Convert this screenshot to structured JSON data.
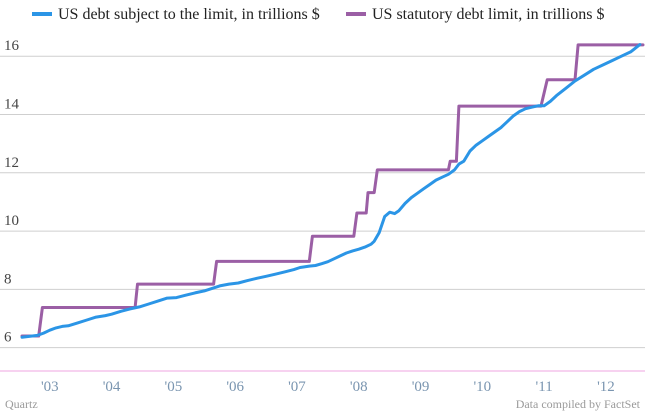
{
  "chart_data": {
    "type": "line",
    "title": "",
    "xlabel": "",
    "ylabel": "",
    "ylim": [
      5.2,
      16.9
    ],
    "xlim": [
      2002.55,
      2012.6
    ],
    "yticks": [
      6,
      8,
      10,
      12,
      14,
      16
    ],
    "ytick_labels": [
      "6",
      "8",
      "10",
      "12",
      "14",
      "16"
    ],
    "xticks": [
      2003,
      2004,
      2005,
      2006,
      2007,
      2008,
      2009,
      2010,
      2011,
      2012
    ],
    "xtick_labels": [
      "'03",
      "'04",
      "'05",
      "'06",
      "'07",
      "'08",
      "'09",
      "'10",
      "'11",
      "'12"
    ],
    "grid": true,
    "legend_position": "top",
    "series": [
      {
        "name": "US debt subject to the limit, in trillions $",
        "color": "#2b95e6",
        "x": [
          2002.55,
          2002.8,
          2002.9,
          2003.0,
          2003.1,
          2003.2,
          2003.3,
          2003.45,
          2003.6,
          2003.75,
          2003.9,
          2004.0,
          2004.15,
          2004.3,
          2004.45,
          2004.6,
          2004.75,
          2004.9,
          2005.05,
          2005.2,
          2005.35,
          2005.5,
          2005.65,
          2005.75,
          2005.9,
          2006.05,
          2006.2,
          2006.35,
          2006.5,
          2006.65,
          2006.8,
          2006.95,
          2007.05,
          2007.2,
          2007.3,
          2007.4,
          2007.5,
          2007.6,
          2007.7,
          2007.8,
          2007.9,
          2008.0,
          2008.1,
          2008.2,
          2008.25,
          2008.33,
          2008.42,
          2008.5,
          2008.58,
          2008.65,
          2008.75,
          2008.85,
          2008.95,
          2009.05,
          2009.15,
          2009.25,
          2009.35,
          2009.45,
          2009.55,
          2009.62,
          2009.7,
          2009.8,
          2009.9,
          2010.0,
          2010.1,
          2010.2,
          2010.3,
          2010.4,
          2010.5,
          2010.6,
          2010.7,
          2010.8,
          2010.9,
          2011.0,
          2011.1,
          2011.2,
          2011.35,
          2011.5,
          2011.65,
          2011.8,
          2011.95,
          2012.1,
          2012.25,
          2012.4,
          2012.55
        ],
        "values": [
          6.36,
          6.42,
          6.5,
          6.6,
          6.68,
          6.73,
          6.75,
          6.85,
          6.95,
          7.05,
          7.1,
          7.15,
          7.25,
          7.33,
          7.4,
          7.5,
          7.6,
          7.7,
          7.72,
          7.8,
          7.88,
          7.95,
          8.05,
          8.12,
          8.18,
          8.22,
          8.3,
          8.38,
          8.45,
          8.52,
          8.6,
          8.68,
          8.75,
          8.8,
          8.82,
          8.88,
          8.95,
          9.05,
          9.15,
          9.25,
          9.32,
          9.38,
          9.45,
          9.55,
          9.65,
          9.95,
          10.5,
          10.65,
          10.6,
          10.7,
          10.95,
          11.15,
          11.3,
          11.45,
          11.6,
          11.75,
          11.85,
          11.95,
          12.1,
          12.3,
          12.4,
          12.75,
          12.95,
          13.1,
          13.25,
          13.4,
          13.55,
          13.75,
          13.95,
          14.1,
          14.2,
          14.25,
          14.3,
          14.3,
          14.45,
          14.65,
          14.9,
          15.15,
          15.35,
          15.55,
          15.7,
          15.85,
          16.0,
          16.15,
          16.4
        ]
      },
      {
        "name": "US statutory debt limit, in trillions $",
        "color": "#9b5fa5",
        "x": [
          2002.55,
          2002.82,
          2002.88,
          2004.38,
          2004.42,
          2005.65,
          2005.7,
          2007.2,
          2007.25,
          2007.92,
          2007.97,
          2008.12,
          2008.15,
          2008.25,
          2008.3,
          2008.55,
          2008.6,
          2009.45,
          2009.48,
          2009.58,
          2009.62,
          2010.95,
          2011.05,
          2011.2,
          2011.25,
          2011.5,
          2011.55,
          2012.6
        ],
        "values": [
          6.4,
          6.4,
          7.38,
          7.38,
          8.18,
          8.18,
          8.96,
          8.96,
          9.82,
          9.82,
          10.62,
          10.62,
          11.32,
          11.32,
          12.1,
          12.1,
          12.1,
          12.1,
          12.4,
          12.4,
          14.29,
          14.29,
          15.19,
          15.19,
          15.19,
          15.19,
          16.39,
          16.39
        ]
      }
    ]
  },
  "footer": {
    "source_left": "Quartz",
    "source_right": "Data compiled by FactSet"
  }
}
